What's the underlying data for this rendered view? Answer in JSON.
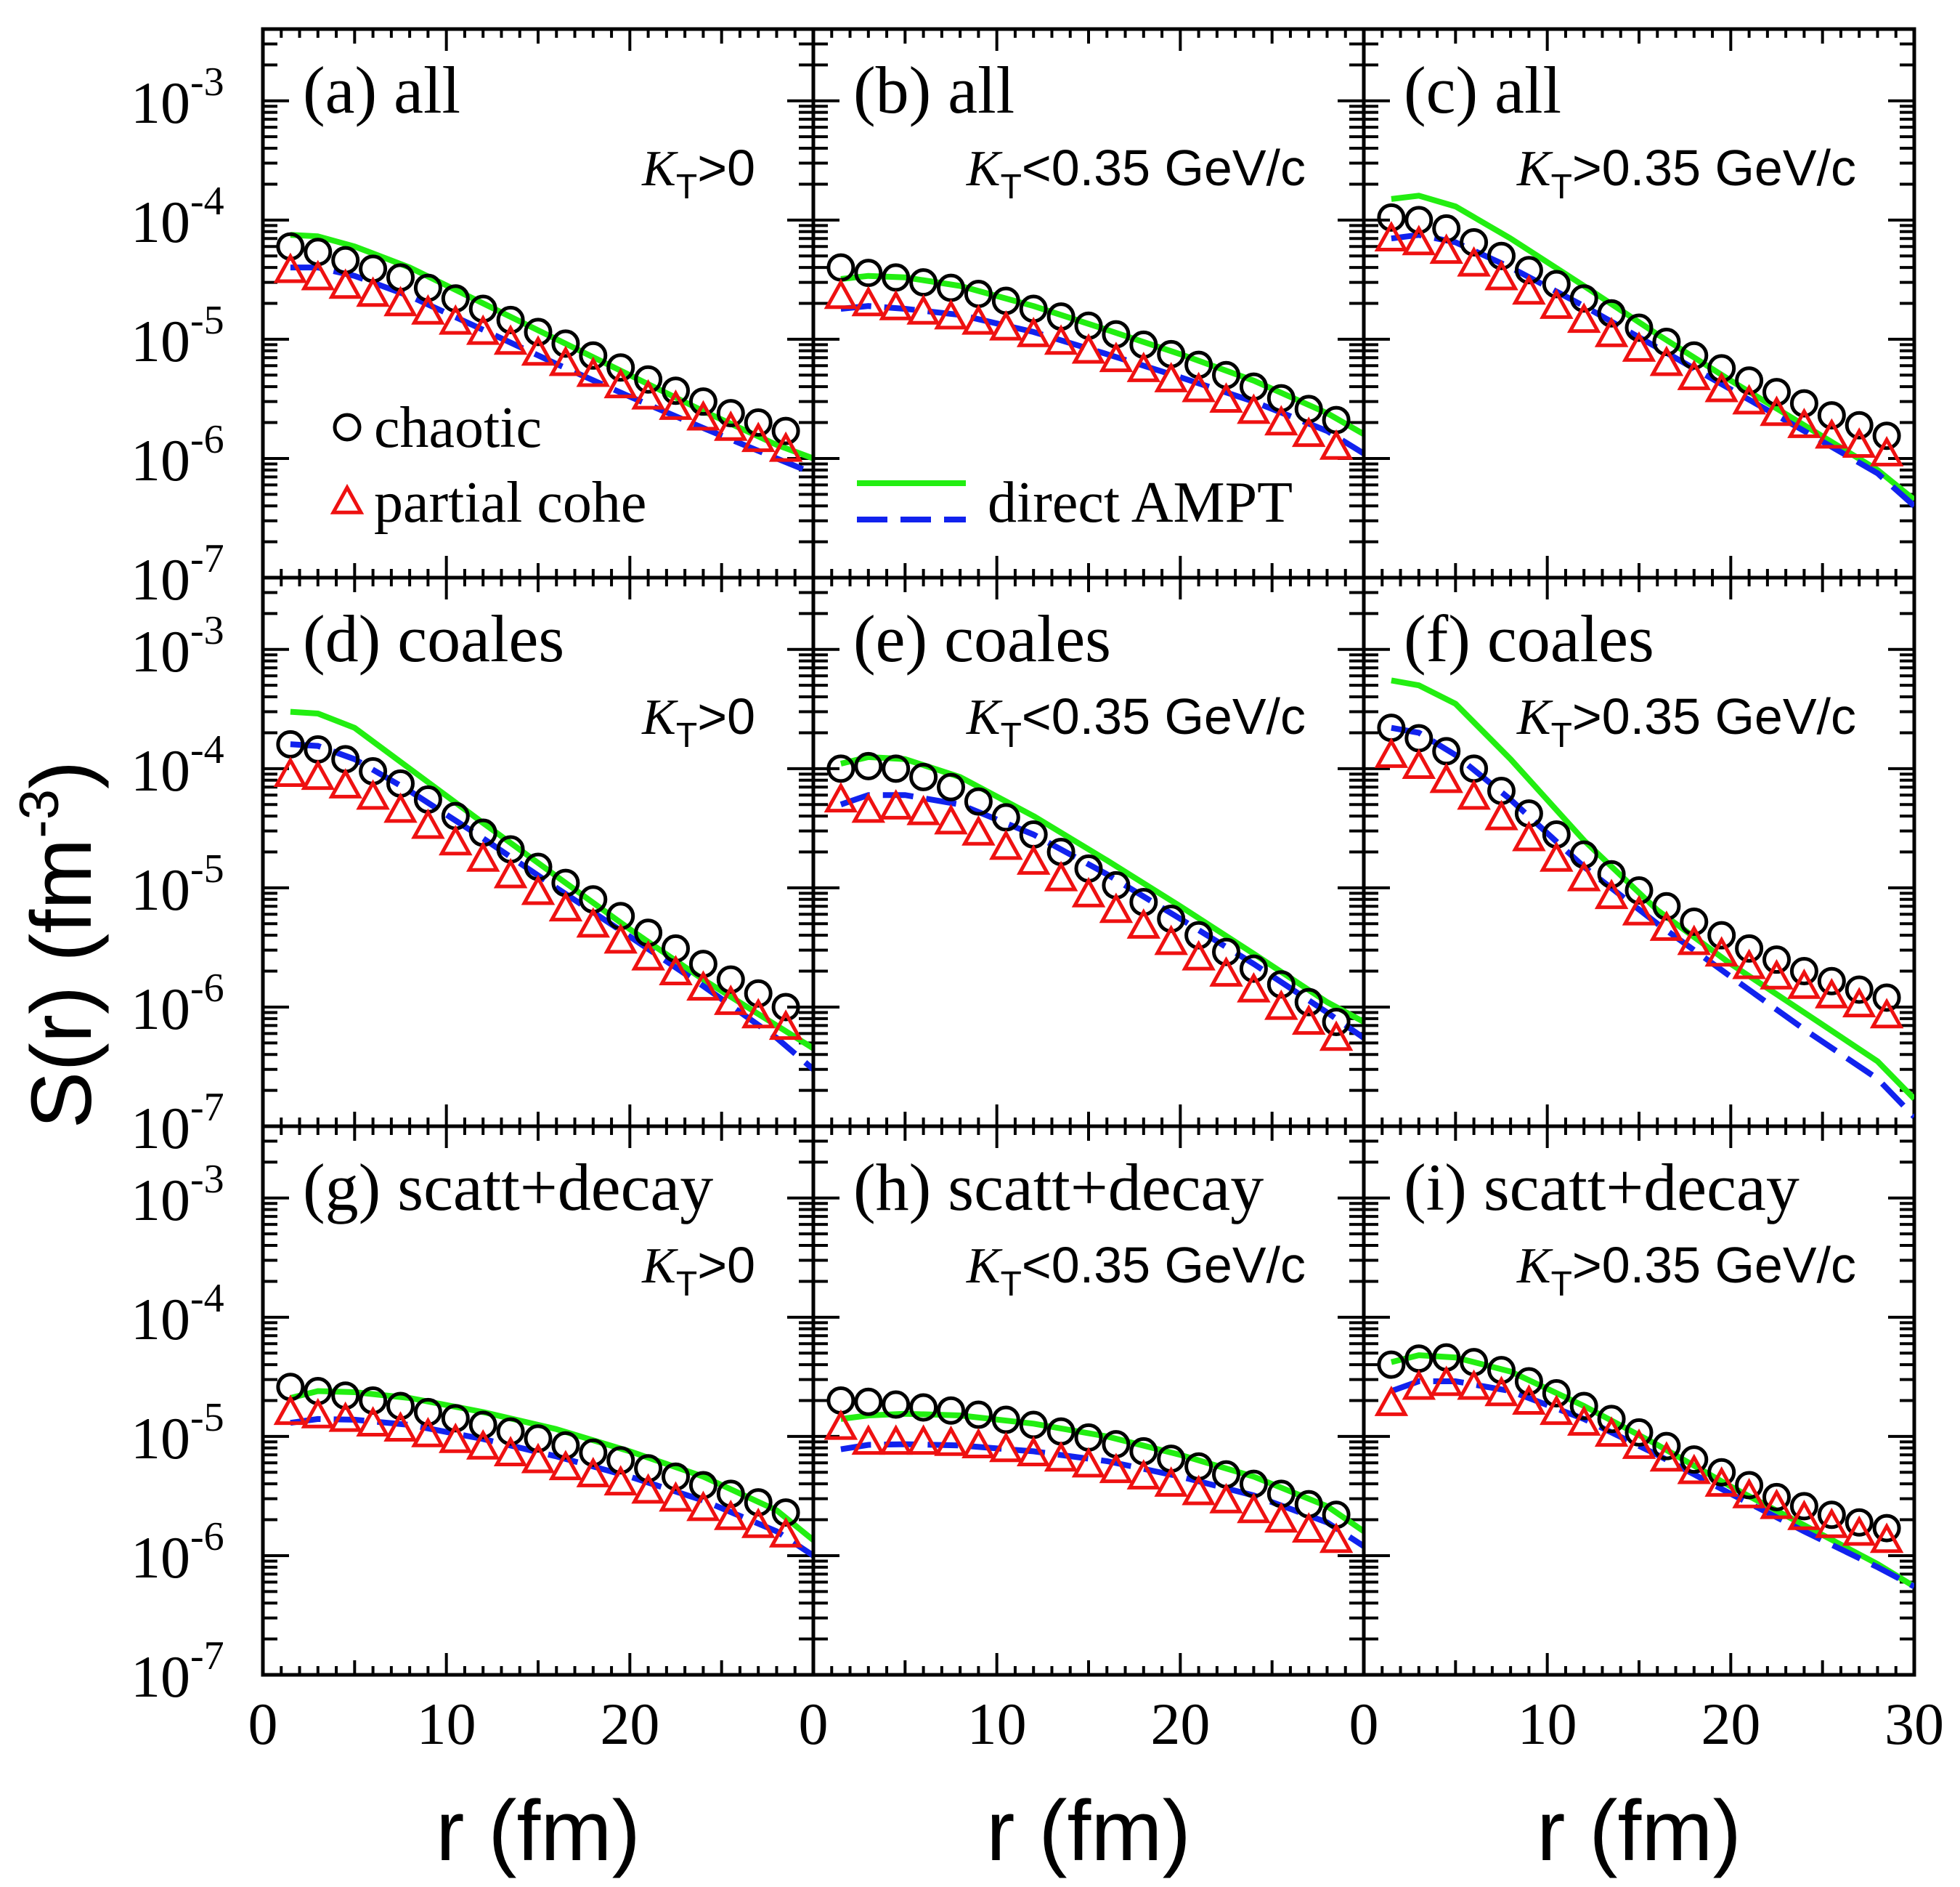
{
  "figure": {
    "y_axis_label": "S(r) (fm",
    "y_axis_exp": "-3",
    "y_axis_close": ")",
    "x_axis_label": "r (fm)",
    "x_tick_labels": [
      "0",
      "10",
      "20",
      "30"
    ]
  },
  "legend": {
    "chaotic": "chaotic",
    "partial": "partial cohe",
    "direct": "direct AMPT"
  },
  "colors": {
    "chaotic": "#000000",
    "partial": "#ee1111",
    "solid": "#22ee11",
    "dashed": "#1122ee"
  },
  "chart_data": {
    "type": "scatter",
    "xlabel": "r (fm)",
    "ylabel": "S(r) (fm^-3)",
    "xlim": [
      0,
      30
    ],
    "ylim": [
      1e-07,
      0.004
    ],
    "yscale": "log",
    "y_tick_labels": [
      "10^-7",
      "10^-6",
      "10^-5",
      "10^-4",
      "10^-3"
    ],
    "series_names": [
      "chaotic",
      "partial cohe",
      "direct AMPT (solid)",
      "direct AMPT (dashed)"
    ],
    "r_points": [
      1.5,
      3,
      4.5,
      6,
      7.5,
      9,
      10.5,
      12,
      13.5,
      15,
      16.5,
      18,
      19.5,
      21,
      22.5,
      24,
      25.5,
      27,
      28.5
    ],
    "panels": [
      {
        "id": "a",
        "title": "(a) all",
        "kt_sym": "K",
        "kt_sub": "T",
        "kt_cond": ">0",
        "chaotic": [
          6e-05,
          5.4e-05,
          4.6e-05,
          3.9e-05,
          3.3e-05,
          2.7e-05,
          2.2e-05,
          1.8e-05,
          1.45e-05,
          1.15e-05,
          9.2e-06,
          7.3e-06,
          5.8e-06,
          4.6e-06,
          3.7e-06,
          3e-06,
          2.4e-06,
          2e-06,
          1.7e-06
        ],
        "partial": [
          3.8e-05,
          3.3e-05,
          2.8e-05,
          2.4e-05,
          2e-05,
          1.7e-05,
          1.4e-05,
          1.15e-05,
          9.5e-06,
          7.7e-06,
          6.3e-06,
          5.1e-06,
          4.1e-06,
          3.3e-06,
          2.7e-06,
          2.2e-06,
          1.8e-06,
          1.45e-06,
          1.2e-06
        ],
        "solid_x": [
          1.5,
          3,
          5,
          8,
          12,
          16,
          20,
          24,
          28,
          30
        ],
        "solid_y": [
          7.5e-05,
          7.3e-05,
          6e-05,
          4e-05,
          2e-05,
          1e-05,
          5e-06,
          2.5e-06,
          1.3e-06,
          1e-06
        ],
        "dashed_x": [
          1.5,
          3,
          5,
          8,
          12,
          16,
          20,
          24,
          28,
          30
        ],
        "dashed_y": [
          4e-05,
          4e-05,
          3.4e-05,
          2.3e-05,
          1.2e-05,
          6.2e-06,
          3.3e-06,
          1.8e-06,
          1e-06,
          7.5e-07
        ]
      },
      {
        "id": "b",
        "title": "(b) all",
        "kt_sym": "K",
        "kt_sub": "T",
        "kt_cond": "<0.35 GeV/c",
        "chaotic": [
          4e-05,
          3.6e-05,
          3.3e-05,
          3e-05,
          2.7e-05,
          2.4e-05,
          2.1e-05,
          1.8e-05,
          1.55e-05,
          1.3e-05,
          1.1e-05,
          9e-06,
          7.5e-06,
          6.1e-06,
          5e-06,
          4e-06,
          3.2e-06,
          2.6e-06,
          2.1e-06
        ],
        "partial": [
          2.3e-05,
          2e-05,
          1.85e-05,
          1.7e-05,
          1.55e-05,
          1.4e-05,
          1.25e-05,
          1.1e-05,
          9.5e-06,
          8e-06,
          6.8e-06,
          5.6e-06,
          4.6e-06,
          3.8e-06,
          3.1e-06,
          2.5e-06,
          2e-06,
          1.6e-06,
          1.25e-06
        ],
        "solid_x": [
          1.5,
          3,
          5,
          8,
          12,
          16,
          20,
          24,
          28,
          30
        ],
        "solid_y": [
          3.2e-05,
          3.4e-05,
          3.3e-05,
          2.8e-05,
          1.9e-05,
          1.2e-05,
          7.5e-06,
          4.5e-06,
          2.4e-06,
          1.6e-06
        ],
        "dashed_x": [
          1.5,
          3,
          5,
          8,
          12,
          16,
          20,
          24,
          28,
          30
        ],
        "dashed_y": [
          1.8e-05,
          1.9e-05,
          1.8e-05,
          1.6e-05,
          1.15e-05,
          7.5e-06,
          4.8e-06,
          3e-06,
          1.7e-06,
          1.1e-06
        ]
      },
      {
        "id": "c",
        "title": "(c) all",
        "kt_sym": "K",
        "kt_sub": "T",
        "kt_cond": ">0.35 GeV/c",
        "chaotic": [
          0.000105,
          0.0001,
          8.5e-05,
          6.5e-05,
          5e-05,
          3.8e-05,
          2.9e-05,
          2.2e-05,
          1.65e-05,
          1.25e-05,
          9.5e-06,
          7.3e-06,
          5.7e-06,
          4.5e-06,
          3.6e-06,
          2.9e-06,
          2.3e-06,
          1.9e-06,
          1.55e-06
        ],
        "partial": [
          7e-05,
          6.5e-05,
          5.5e-05,
          4.3e-05,
          3.3e-05,
          2.5e-05,
          1.9e-05,
          1.45e-05,
          1.1e-05,
          8.3e-06,
          6.3e-06,
          4.8e-06,
          3.8e-06,
          3e-06,
          2.4e-06,
          1.9e-06,
          1.55e-06,
          1.3e-06,
          1.1e-06
        ],
        "solid_x": [
          1.5,
          3,
          5,
          8,
          12,
          16,
          20,
          24,
          28,
          30
        ],
        "solid_y": [
          0.00015,
          0.00016,
          0.00013,
          7e-05,
          2.8e-05,
          1.1e-05,
          4.5e-06,
          1.9e-06,
          8e-07,
          4.5e-07
        ],
        "dashed_x": [
          1.5,
          3,
          5,
          8,
          12,
          16,
          20,
          24,
          28,
          30
        ],
        "dashed_y": [
          7e-05,
          7.5e-05,
          6.5e-05,
          4e-05,
          1.9e-05,
          8.5e-06,
          3.8e-06,
          1.7e-06,
          7.5e-07,
          4e-07
        ]
      },
      {
        "id": "d",
        "title": "(d) coales",
        "kt_sym": "K",
        "kt_sub": "T",
        "kt_cond": ">0",
        "chaotic": [
          0.00016,
          0.000145,
          0.00012,
          9.5e-05,
          7.5e-05,
          5.5e-05,
          4e-05,
          2.9e-05,
          2.1e-05,
          1.5e-05,
          1.1e-05,
          8e-06,
          5.8e-06,
          4.2e-06,
          3.1e-06,
          2.3e-06,
          1.7e-06,
          1.3e-06,
          1e-06
        ],
        "partial": [
          9e-05,
          8.5e-05,
          7.2e-05,
          5.8e-05,
          4.5e-05,
          3.3e-05,
          2.4e-05,
          1.75e-05,
          1.27e-05,
          9.2e-06,
          6.7e-06,
          4.9e-06,
          3.6e-06,
          2.6e-06,
          1.95e-06,
          1.45e-06,
          1.1e-06,
          8.5e-07,
          6.8e-07
        ],
        "solid_x": [
          1.5,
          3,
          5,
          8,
          12,
          16,
          20,
          24,
          28,
          30
        ],
        "solid_y": [
          0.0003,
          0.00029,
          0.00022,
          0.0001,
          3.5e-05,
          1.25e-05,
          4.5e-06,
          1.7e-06,
          7e-07,
          4.5e-07
        ],
        "dashed_x": [
          1.5,
          3,
          5,
          8,
          12,
          16,
          20,
          24,
          28,
          30
        ],
        "dashed_y": [
          0.00016,
          0.000155,
          0.00012,
          6.5e-05,
          2.6e-05,
          1e-05,
          3.9e-06,
          1.5e-06,
          5.5e-07,
          3e-07
        ]
      },
      {
        "id": "e",
        "title": "(e) coales",
        "kt_sym": "K",
        "kt_sub": "T",
        "kt_cond": "<0.35 GeV/c",
        "chaotic": [
          0.0001,
          0.000105,
          0.0001,
          8.5e-05,
          7e-05,
          5.3e-05,
          3.9e-05,
          2.8e-05,
          2e-05,
          1.45e-05,
          1.05e-05,
          7.6e-06,
          5.5e-06,
          4e-06,
          2.9e-06,
          2.1e-06,
          1.55e-06,
          1.1e-06,
          7.5e-07
        ],
        "partial": [
          5.5e-05,
          4.5e-05,
          4.8e-05,
          4.3e-05,
          3.6e-05,
          2.9e-05,
          2.2e-05,
          1.65e-05,
          1.2e-05,
          8.8e-06,
          6.5e-06,
          4.8e-06,
          3.5e-06,
          2.6e-06,
          1.9e-06,
          1.4e-06,
          1e-06,
          7.5e-07,
          5.5e-07
        ],
        "solid_x": [
          1.5,
          3,
          5,
          8,
          12,
          16,
          20,
          24,
          28,
          30
        ],
        "solid_y": [
          0.00011,
          0.000125,
          0.00012,
          8.5e-05,
          4e-05,
          1.7e-05,
          7e-06,
          2.8e-06,
          1.1e-06,
          7.5e-07
        ],
        "dashed_x": [
          1.5,
          3,
          5,
          8,
          12,
          16,
          20,
          24,
          28,
          30
        ],
        "dashed_y": [
          5e-05,
          6e-05,
          6e-05,
          5e-05,
          2.8e-05,
          1.3e-05,
          5.5e-06,
          2.3e-06,
          9e-07,
          5.5e-07
        ]
      },
      {
        "id": "f",
        "title": "(f) coales",
        "kt_sym": "K",
        "kt_sub": "T",
        "kt_cond": ">0.35 GeV/c",
        "chaotic": [
          0.00022,
          0.00018,
          0.00014,
          0.0001,
          6.5e-05,
          4.2e-05,
          2.8e-05,
          1.9e-05,
          1.3e-05,
          9.5e-06,
          7e-06,
          5.2e-06,
          4e-06,
          3.1e-06,
          2.5e-06,
          2e-06,
          1.65e-06,
          1.4e-06,
          1.2e-06
        ],
        "partial": [
          0.00013,
          0.000105,
          8e-05,
          5.8e-05,
          3.9e-05,
          2.6e-05,
          1.75e-05,
          1.2e-05,
          8.5e-06,
          6.2e-06,
          4.6e-06,
          3.5e-06,
          2.8e-06,
          2.2e-06,
          1.8e-06,
          1.5e-06,
          1.25e-06,
          1.05e-06,
          8.5e-07
        ],
        "solid_x": [
          1.5,
          3,
          5,
          8,
          12,
          16,
          20,
          24,
          28,
          30
        ],
        "solid_y": [
          0.00055,
          0.0005,
          0.00035,
          0.00012,
          2.5e-05,
          6.5e-06,
          2.3e-06,
          9e-07,
          3.5e-07,
          1.7e-07
        ],
        "dashed_x": [
          1.5,
          3,
          5,
          8,
          12,
          16,
          20,
          24,
          28,
          30
        ],
        "dashed_y": [
          0.00022,
          0.0002,
          0.00013,
          5.5e-05,
          1.5e-05,
          5e-06,
          1.8e-06,
          6.5e-07,
          2.5e-07,
          1.2e-07
        ]
      },
      {
        "id": "g",
        "title": "(g) scatt+decay",
        "kt_sym": "K",
        "kt_sub": "T",
        "kt_cond": ">0",
        "chaotic": [
          2.6e-05,
          2.4e-05,
          2.2e-05,
          2e-05,
          1.8e-05,
          1.6e-05,
          1.42e-05,
          1.25e-05,
          1.1e-05,
          9.6e-06,
          8.4e-06,
          7.3e-06,
          6.3e-06,
          5.4e-06,
          4.6e-06,
          3.9e-06,
          3.3e-06,
          2.8e-06,
          2.3e-06
        ],
        "partial": [
          1.6e-05,
          1.5e-05,
          1.4e-05,
          1.28e-05,
          1.16e-05,
          1.04e-05,
          9.3e-06,
          8.2e-06,
          7.2e-06,
          6.3e-06,
          5.5e-06,
          4.8e-06,
          4.1e-06,
          3.5e-06,
          3e-06,
          2.5e-06,
          2.1e-06,
          1.8e-06,
          1.5e-06
        ],
        "solid_x": [
          1.5,
          3,
          5,
          8,
          12,
          16,
          20,
          24,
          28,
          30
        ],
        "solid_y": [
          2.1e-05,
          2.4e-05,
          2.35e-05,
          2.1e-05,
          1.6e-05,
          1.15e-05,
          7.5e-06,
          4.6e-06,
          2.4e-06,
          1.35e-06
        ],
        "dashed_x": [
          1.5,
          3,
          5,
          8,
          12,
          16,
          20,
          24,
          28,
          30
        ],
        "dashed_y": [
          1.3e-05,
          1.4e-05,
          1.38e-05,
          1.25e-05,
          9.5e-06,
          6.8e-06,
          4.6e-06,
          2.9e-06,
          1.6e-06,
          1e-06
        ]
      },
      {
        "id": "h",
        "title": "(h) scatt+decay",
        "kt_sym": "K",
        "kt_sub": "T",
        "kt_cond": "<0.35 GeV/c",
        "chaotic": [
          2e-05,
          1.95e-05,
          1.85e-05,
          1.75e-05,
          1.65e-05,
          1.52e-05,
          1.38e-05,
          1.25e-05,
          1.1e-05,
          9.8e-06,
          8.6e-06,
          7.5e-06,
          6.5e-06,
          5.6e-06,
          4.8e-06,
          4e-06,
          3.3e-06,
          2.7e-06,
          2.2e-06
        ],
        "partial": [
          1.2e-05,
          9e-06,
          9e-06,
          9e-06,
          8.8e-06,
          8.4e-06,
          7.8e-06,
          7.2e-06,
          6.5e-06,
          5.8e-06,
          5.2e-06,
          4.6e-06,
          4e-06,
          3.4e-06,
          2.9e-06,
          2.4e-06,
          2e-06,
          1.65e-06,
          1.35e-06
        ],
        "solid_x": [
          1.5,
          3,
          5,
          8,
          12,
          16,
          20,
          24,
          28,
          30
        ],
        "solid_y": [
          1.4e-05,
          1.5e-05,
          1.55e-05,
          1.5e-05,
          1.28e-05,
          1e-05,
          7e-06,
          4.6e-06,
          2.6e-06,
          1.6e-06
        ],
        "dashed_x": [
          1.5,
          3,
          5,
          8,
          12,
          16,
          20,
          24,
          28,
          30
        ],
        "dashed_y": [
          7.8e-06,
          8.5e-06,
          8.6e-06,
          8.4e-06,
          7.5e-06,
          6.2e-06,
          4.6e-06,
          3.2e-06,
          1.9e-06,
          1.2e-06
        ]
      },
      {
        "id": "i",
        "title": "(i) scatt+decay",
        "kt_sym": "K",
        "kt_sub": "T",
        "kt_cond": ">0.35 GeV/c",
        "chaotic": [
          4e-05,
          4.5e-05,
          4.6e-05,
          4.2e-05,
          3.6e-05,
          2.9e-05,
          2.3e-05,
          1.8e-05,
          1.4e-05,
          1.08e-05,
          8.3e-06,
          6.4e-06,
          5e-06,
          3.9e-06,
          3.1e-06,
          2.6e-06,
          2.2e-06,
          1.9e-06,
          1.7e-06
        ],
        "partial": [
          1.9e-05,
          2.6e-05,
          2.8e-05,
          2.6e-05,
          2.3e-05,
          1.95e-05,
          1.6e-05,
          1.3e-05,
          1.05e-05,
          8.3e-06,
          6.5e-06,
          5.1e-06,
          4e-06,
          3.2e-06,
          2.6e-06,
          2.1e-06,
          1.8e-06,
          1.55e-06,
          1.35e-06
        ],
        "solid_x": [
          1.5,
          3,
          5,
          8,
          12,
          16,
          20,
          24,
          28,
          30
        ],
        "solid_y": [
          4.2e-05,
          4.8e-05,
          4.6e-05,
          3.5e-05,
          1.8e-05,
          8.5e-06,
          3.8e-06,
          1.8e-06,
          8.5e-07,
          5.5e-07
        ],
        "dashed_x": [
          1.5,
          3,
          5,
          8,
          12,
          16,
          20,
          24,
          28,
          30
        ],
        "dashed_y": [
          2.4e-05,
          2.9e-05,
          2.9e-05,
          2.4e-05,
          1.4e-05,
          7e-06,
          3.3e-06,
          1.6e-06,
          8e-07,
          5.5e-07
        ]
      }
    ]
  }
}
